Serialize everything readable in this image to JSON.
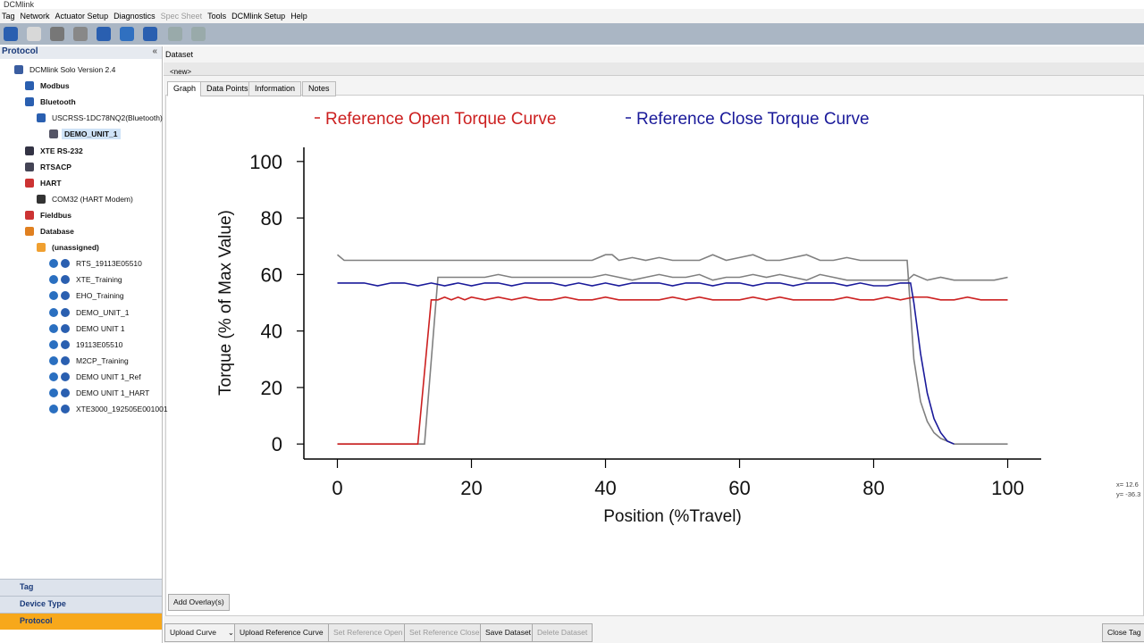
{
  "window_title": "DCMlink",
  "menu": [
    "Tag",
    "Network",
    "Actuator Setup",
    "Diagnostics",
    "Spec Sheet",
    "Tools",
    "DCMlink Setup",
    "Help"
  ],
  "sidebar": {
    "title": "Protocol",
    "tree": [
      "DCMlink Solo Version 2.4",
      "Modbus",
      "Bluetooth",
      "USCRSS-1DC78NQ2(Bluetooth)",
      "DEMO_UNIT_1",
      "XTE RS-232",
      "RTSACP",
      "HART",
      "COM32 (HART Modem)",
      "Fieldbus",
      "Database",
      "(unassigned)",
      "RTS_19113E05510",
      "XTE_Training",
      "EHO_Training",
      "DEMO_UNIT_1",
      "DEMO UNIT 1",
      "19113E05510",
      "M2CP_Training",
      "DEMO UNIT 1_Ref",
      "DEMO UNIT 1_HART",
      "XTE3000_192505E001001"
    ],
    "nav": [
      "Tag",
      "Device Type",
      "Protocol"
    ]
  },
  "dataset": {
    "title": "Dataset",
    "name": "<new>",
    "tabs": [
      "Graph",
      "Data Points",
      "Information",
      "Notes"
    ]
  },
  "chart_data": {
    "type": "line",
    "xlabel": "Position (%Travel)",
    "ylabel": "Torque (% of Max Value)",
    "xlim": [
      -5,
      105
    ],
    "ylim": [
      -5,
      105
    ],
    "xticks": [
      0,
      20,
      40,
      60,
      80,
      100
    ],
    "yticks": [
      0,
      20,
      40,
      60,
      80,
      100
    ],
    "series": [
      {
        "name": "Reference Open Torque Curve",
        "color": "#cc2020",
        "x": [
          0,
          12,
          14,
          15,
          16,
          17,
          18,
          19,
          20,
          22,
          24,
          26,
          28,
          30,
          32,
          34,
          36,
          38,
          40,
          42,
          44,
          46,
          48,
          50,
          52,
          54,
          56,
          58,
          60,
          62,
          64,
          66,
          68,
          70,
          72,
          74,
          76,
          78,
          80,
          82,
          84,
          86,
          88,
          90,
          92,
          94,
          96,
          98,
          100
        ],
        "values": [
          0,
          0,
          51,
          51,
          52,
          51,
          52,
          51,
          52,
          51,
          52,
          51,
          52,
          51,
          51,
          52,
          51,
          51,
          52,
          51,
          51,
          51,
          51,
          52,
          51,
          52,
          51,
          51,
          51,
          52,
          51,
          52,
          51,
          51,
          51,
          51,
          52,
          51,
          51,
          52,
          51,
          52,
          52,
          51,
          51,
          52,
          51,
          51,
          51
        ]
      },
      {
        "name": "Reference Close Torque Curve",
        "color": "#1a1a9a",
        "x": [
          0,
          2,
          4,
          6,
          8,
          10,
          12,
          14,
          16,
          18,
          20,
          22,
          24,
          26,
          28,
          30,
          32,
          34,
          36,
          38,
          40,
          42,
          44,
          46,
          48,
          50,
          52,
          54,
          56,
          58,
          60,
          62,
          64,
          66,
          68,
          70,
          72,
          74,
          76,
          78,
          80,
          82,
          84,
          85.5,
          86,
          87,
          88,
          89,
          90,
          91,
          92
        ],
        "values": [
          57,
          57,
          57,
          56,
          57,
          57,
          56,
          57,
          56,
          57,
          56,
          57,
          57,
          56,
          57,
          57,
          57,
          56,
          57,
          56,
          57,
          56,
          57,
          57,
          57,
          56,
          57,
          57,
          56,
          57,
          57,
          56,
          57,
          57,
          56,
          57,
          57,
          57,
          56,
          57,
          56,
          56,
          57,
          57,
          50,
          32,
          18,
          9,
          4,
          1,
          0
        ]
      },
      {
        "color": "#808080",
        "x": [
          0,
          1,
          10,
          20,
          30,
          38,
          40,
          41,
          42,
          44,
          46,
          48,
          50,
          52,
          54,
          56,
          58,
          60,
          62,
          64,
          66,
          68,
          70,
          72,
          74,
          76,
          78,
          80,
          82,
          84,
          85,
          86,
          87,
          88,
          89,
          90,
          91,
          92,
          100
        ],
        "values": [
          67,
          65,
          65,
          65,
          65,
          65,
          67,
          67,
          65,
          66,
          65,
          66,
          65,
          65,
          65,
          67,
          65,
          66,
          67,
          65,
          65,
          66,
          67,
          65,
          65,
          66,
          65,
          65,
          65,
          65,
          65,
          30,
          15,
          8,
          4,
          2,
          1,
          0,
          0
        ]
      },
      {
        "color": "#808080",
        "x": [
          0,
          13,
          15,
          16,
          18,
          20,
          22,
          24,
          26,
          28,
          30,
          32,
          34,
          36,
          38,
          40,
          42,
          44,
          46,
          48,
          50,
          52,
          54,
          56,
          58,
          60,
          62,
          64,
          66,
          68,
          70,
          72,
          74,
          76,
          78,
          80,
          82,
          84,
          85,
          86,
          88,
          90,
          92,
          94,
          96,
          98,
          100
        ],
        "values": [
          0,
          0,
          59,
          59,
          59,
          59,
          59,
          60,
          59,
          59,
          59,
          59,
          59,
          59,
          59,
          60,
          59,
          58,
          59,
          60,
          59,
          59,
          60,
          58,
          59,
          59,
          60,
          59,
          60,
          59,
          58,
          60,
          59,
          58,
          58,
          58,
          58,
          58,
          58,
          60,
          58,
          59,
          58,
          58,
          58,
          58,
          59
        ]
      }
    ]
  },
  "cursor": [
    "x= 12.6",
    "y= -36.3"
  ],
  "buttons": {
    "overlay": "Add Overlay(s)",
    "upload_curve": "Upload Curve",
    "upload_reference": "Upload Reference Curve",
    "set_open": "Set Reference Open",
    "set_close": "Set Reference Close",
    "save": "Save Dataset",
    "delete": "Delete Dataset",
    "close_tag": "Close Tag"
  }
}
